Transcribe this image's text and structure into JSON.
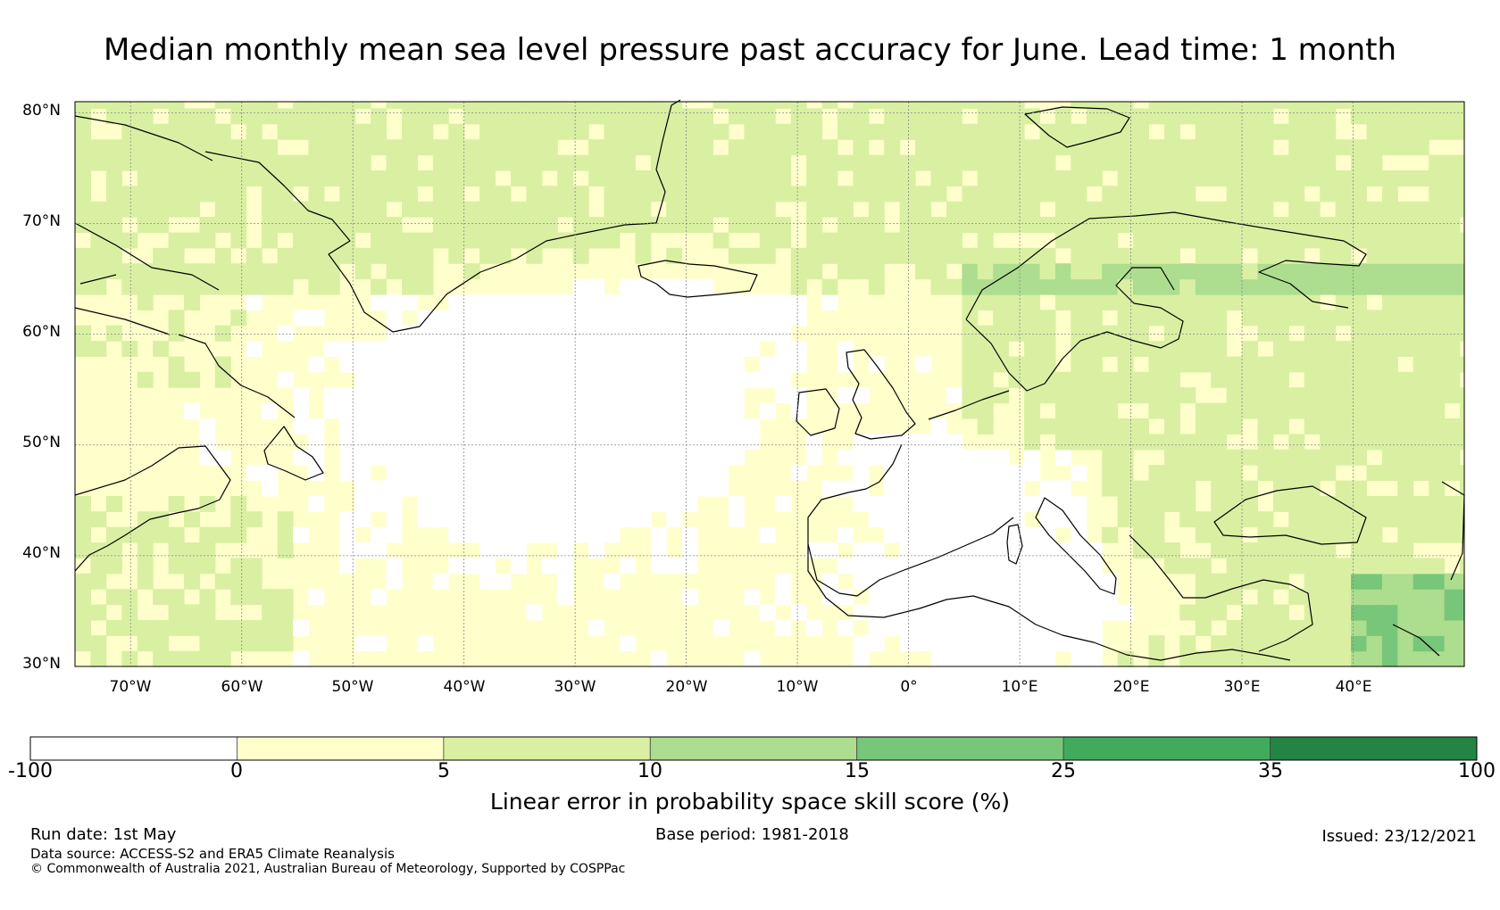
{
  "title": "Median monthly mean sea level pressure past accuracy for June. Lead time: 1 month",
  "map": {
    "lat_labels": [
      "80°N",
      "70°N",
      "60°N",
      "50°N",
      "40°N",
      "30°N"
    ],
    "lon_labels": [
      "70°W",
      "60°W",
      "50°W",
      "40°W",
      "30°W",
      "20°W",
      "10°W",
      "0°",
      "10°E",
      "20°E",
      "30°E",
      "40°E"
    ],
    "extent": {
      "lon_min": -75,
      "lon_max": 50,
      "lat_min": 30,
      "lat_max": 81
    }
  },
  "colorbar": {
    "label": "Linear error in probability space skill score (%)",
    "ticks": [
      "-100",
      "0",
      "5",
      "10",
      "15",
      "25",
      "35",
      "100"
    ],
    "bins": [
      {
        "from": -100,
        "to": 0,
        "color": "#ffffff"
      },
      {
        "from": 0,
        "to": 5,
        "color": "#ffffcc"
      },
      {
        "from": 5,
        "to": 10,
        "color": "#d9f0a3"
      },
      {
        "from": 10,
        "to": 15,
        "color": "#addd8e"
      },
      {
        "from": 15,
        "to": 25,
        "color": "#78c679"
      },
      {
        "from": 25,
        "to": 35,
        "color": "#41ab5d"
      },
      {
        "from": 35,
        "to": 100,
        "color": "#238443"
      }
    ]
  },
  "footer": {
    "run_date": "Run date: 1st May",
    "base_period": "Base period: 1981-2018",
    "issued": "Issued: 23/12/2021",
    "data_source": "Data source: ACCESS-S2 and ERA5 Climate Reanalysis",
    "copyright": "© Commonwealth of Australia 2021, Australian Bureau of Meteorology, Supported by COSPPac"
  }
}
